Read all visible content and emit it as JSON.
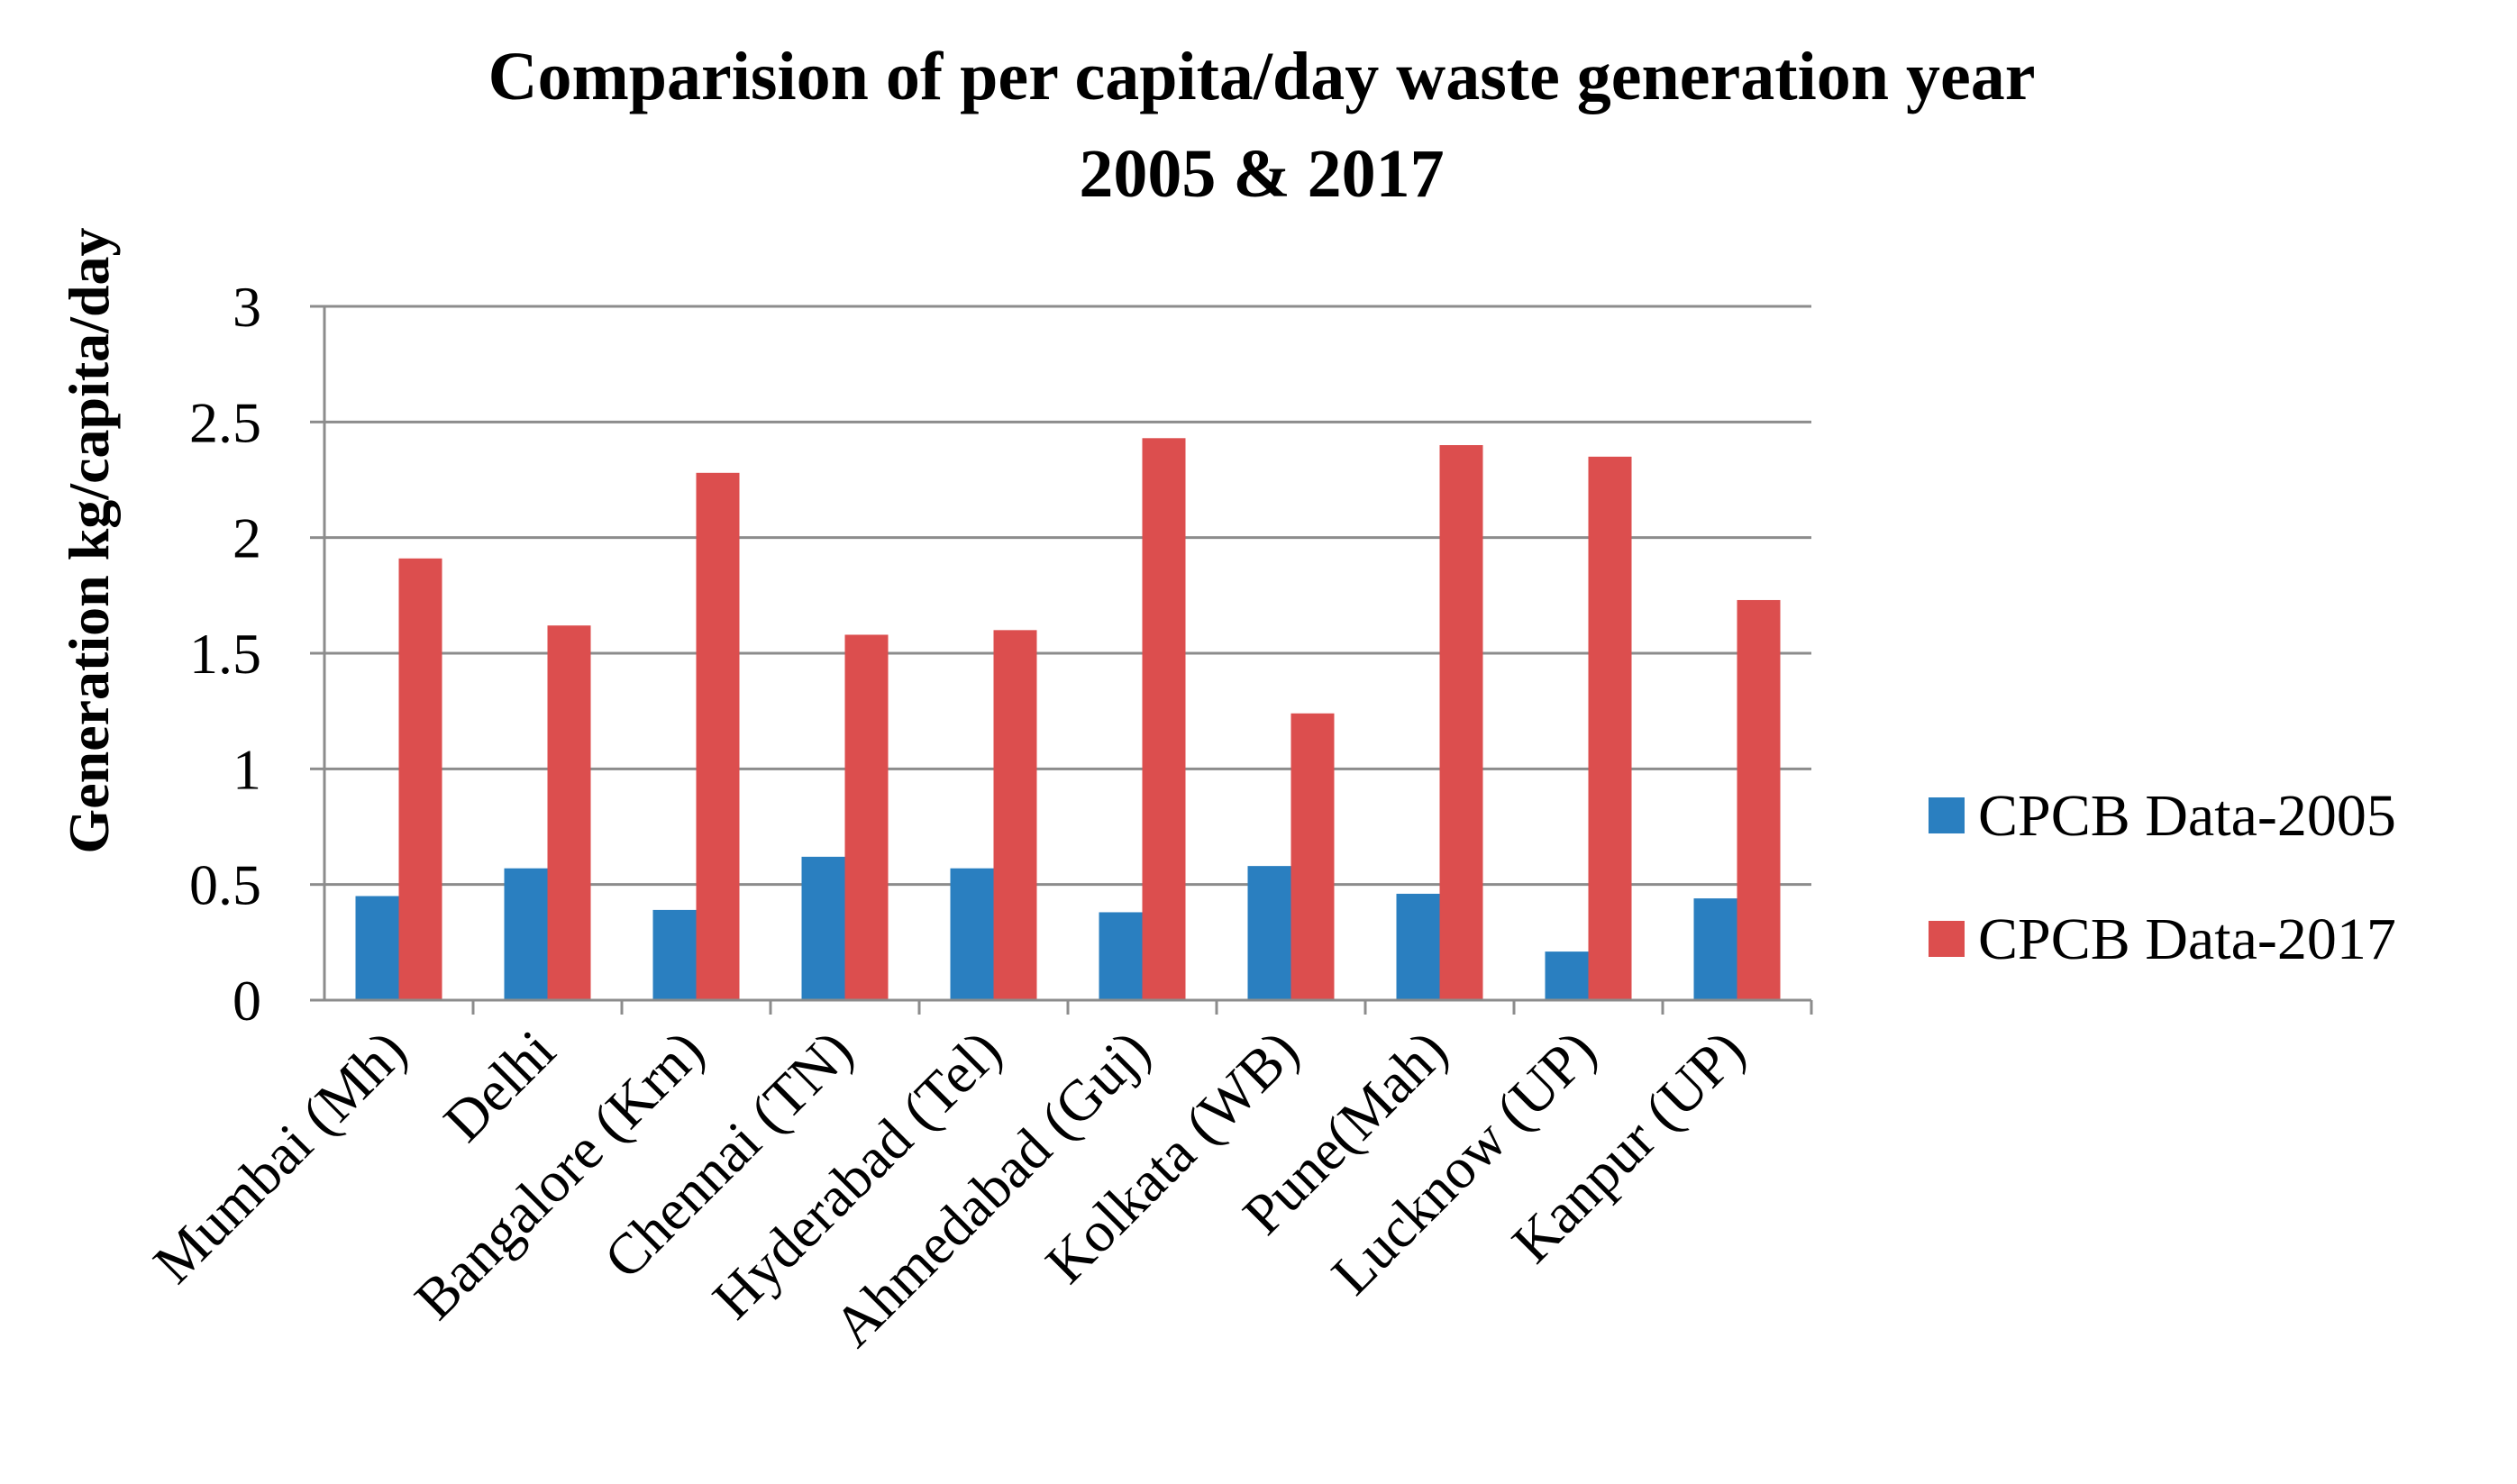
{
  "chart_data": {
    "type": "bar",
    "title_line1": "Comparision  of  per  capita/day  waste  generation  year",
    "title_line2": "2005 & 2017",
    "xlabel": "",
    "ylabel": "Generation kg/capita/day",
    "ylim": [
      0,
      3
    ],
    "yticks": [
      {
        "value": 0,
        "label": "0"
      },
      {
        "value": 0.5,
        "label": "0.5"
      },
      {
        "value": 1,
        "label": "1"
      },
      {
        "value": 1.5,
        "label": "1.5"
      },
      {
        "value": 2,
        "label": "2"
      },
      {
        "value": 2.5,
        "label": "2.5"
      },
      {
        "value": 3,
        "label": "3"
      }
    ],
    "grid": true,
    "legend_position": "right",
    "categories": [
      "Mumbai (Mh)",
      "Delhi",
      "Bangalore (Krn)",
      "Chennai (TN)",
      "Hyderabad (Tel)",
      "Ahmedabad (Guj)",
      "Kolkata (WB)",
      "Pune(Mah)",
      "Lucknow (UP)",
      "Kanpur (UP)"
    ],
    "series": [
      {
        "name": "CPCB Data-2005",
        "color": "#2a7fc0",
        "values": [
          0.45,
          0.57,
          0.39,
          0.62,
          0.57,
          0.38,
          0.58,
          0.46,
          0.21,
          0.44
        ]
      },
      {
        "name": "CPCB Data-2017",
        "color": "#dc4e4e",
        "values": [
          1.91,
          1.62,
          2.28,
          1.58,
          1.6,
          2.43,
          1.24,
          2.4,
          2.35,
          1.73
        ]
      }
    ]
  }
}
